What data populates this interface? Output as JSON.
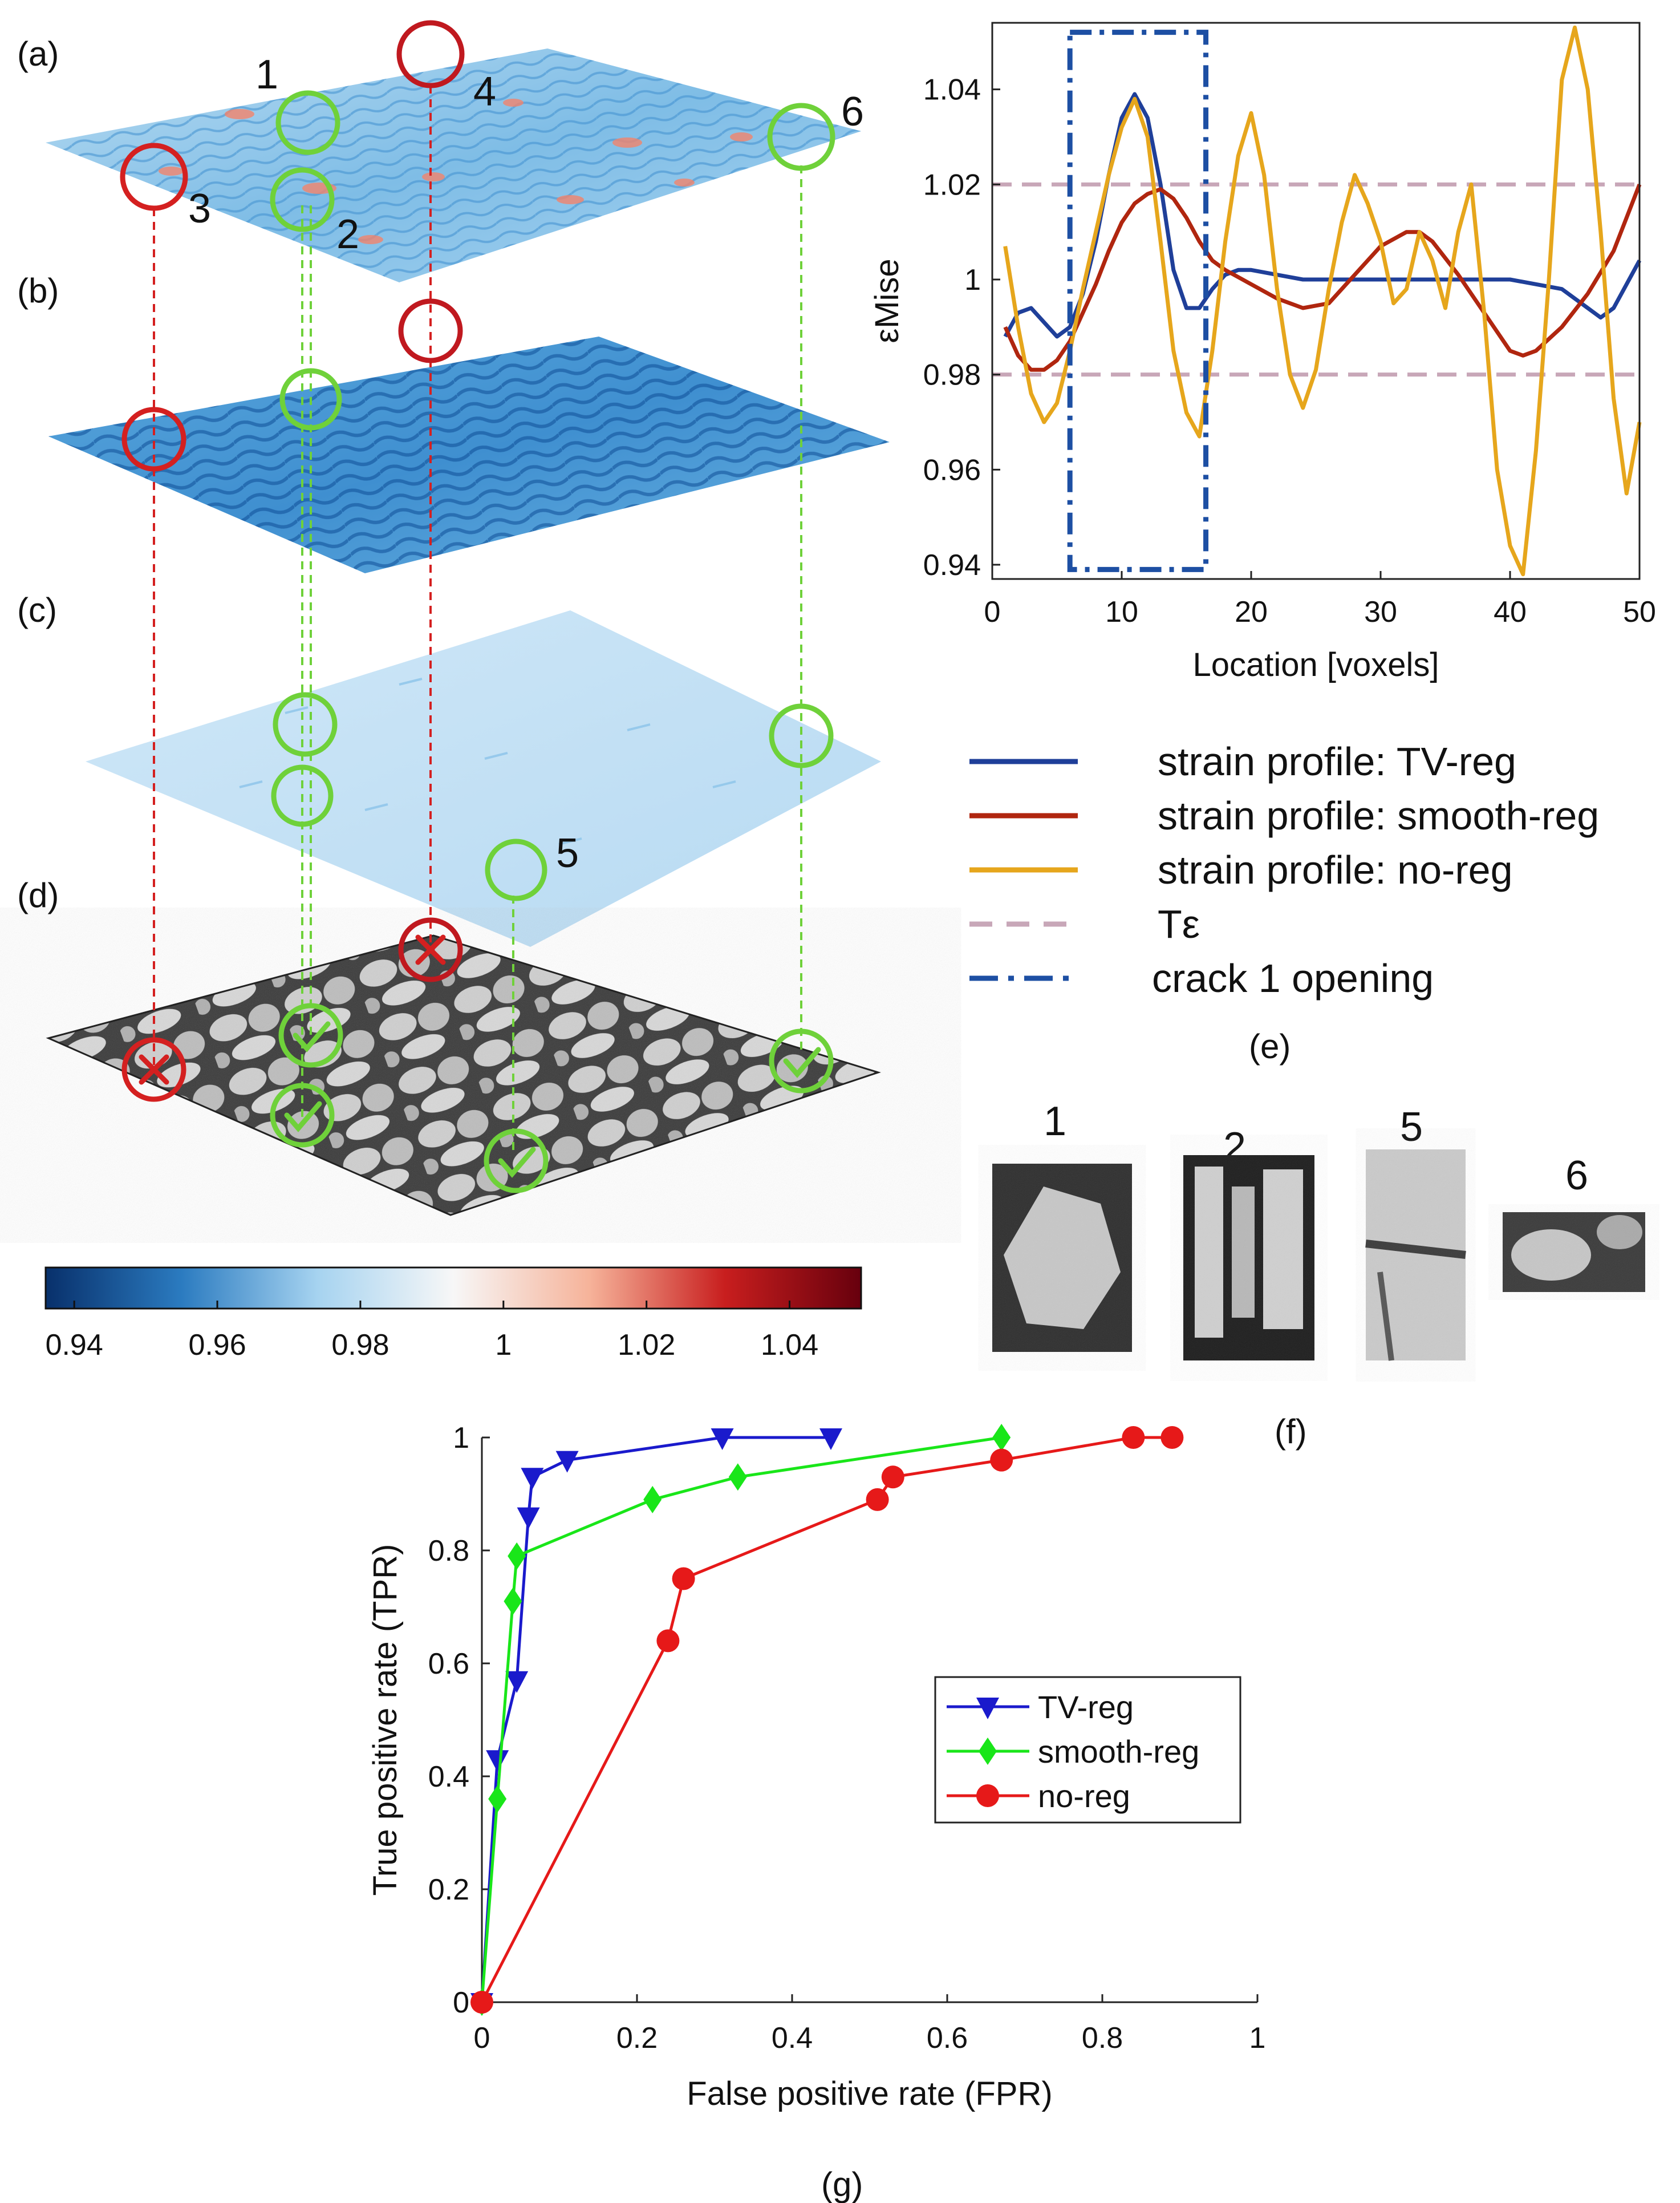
{
  "panel_labels": {
    "a": "(a)",
    "b": "(b)",
    "c": "(c)",
    "d": "(d)",
    "e": "(e)",
    "f": "(f)",
    "g": "(g)"
  },
  "markers": {
    "n1": "1",
    "n2": "2",
    "n3": "3",
    "n4": "4",
    "n5": "5",
    "n6": "6"
  },
  "colorbar": {
    "ticks": [
      "0.94",
      "0.96",
      "0.98",
      "1",
      "1.02",
      "1.04"
    ],
    "range": [
      0.936,
      1.05
    ],
    "stops": [
      "#08306b",
      "#2b7bc0",
      "#a6d3f0",
      "#f7f7f7",
      "#f6b39a",
      "#c81e1e",
      "#67000d"
    ]
  },
  "crops": {
    "labels": [
      "1",
      "2",
      "5",
      "6"
    ]
  },
  "colors": {
    "tv": "#1f3f99",
    "smooth": "#b0260f",
    "noreg": "#e6a61c",
    "threshold": "#c8a7b8",
    "crack": "#1d4fa3",
    "ring_ok": "#6fd13a",
    "ring_bad": "#d42020",
    "roc_tv": "#1a1acc",
    "roc_smooth": "#19e619",
    "roc_noreg": "#e61919"
  },
  "chart_data": [
    {
      "type": "line",
      "panel": "(e)",
      "xlabel": "Location [voxels]",
      "ylabel": "εMise",
      "xlim": [
        0,
        50
      ],
      "ylim": [
        0.937,
        1.054
      ],
      "xticks": [
        "0",
        "10",
        "20",
        "30",
        "40",
        "50"
      ],
      "yticks": [
        "0.94",
        "0.96",
        "0.98",
        "1",
        "1.02",
        "1.04"
      ],
      "thresholds": [
        0.98,
        1.02
      ],
      "crack_box": {
        "x": [
          6,
          16.5
        ],
        "y": [
          0.939,
          1.052
        ]
      },
      "series": [
        {
          "name": "strain profile: TV-reg",
          "key": "tv",
          "x": [
            1,
            2,
            3,
            4,
            5,
            6,
            7,
            8,
            9,
            10,
            11,
            12,
            13,
            14,
            15,
            16,
            17,
            18,
            19,
            20,
            22,
            24,
            26,
            28,
            30,
            32,
            34,
            36,
            38,
            40,
            42,
            44,
            46,
            47,
            48,
            50
          ],
          "y": [
            0.988,
            0.993,
            0.994,
            0.991,
            0.988,
            0.99,
            0.997,
            1.008,
            1.022,
            1.034,
            1.039,
            1.034,
            1.02,
            1.002,
            0.994,
            0.994,
            0.998,
            1.001,
            1.002,
            1.002,
            1.001,
            1.0,
            1.0,
            1.0,
            1.0,
            1.0,
            1.0,
            1.0,
            1.0,
            1.0,
            0.999,
            0.998,
            0.994,
            0.992,
            0.994,
            1.004
          ]
        },
        {
          "name": "strain profile: smooth-reg",
          "key": "smooth",
          "x": [
            1,
            2,
            3,
            4,
            5,
            6,
            7,
            8,
            9,
            10,
            11,
            12,
            13,
            14,
            15,
            16,
            17,
            18,
            20,
            22,
            24,
            26,
            28,
            30,
            32,
            33,
            34,
            36,
            38,
            40,
            41,
            42,
            44,
            46,
            48,
            50
          ],
          "y": [
            0.99,
            0.984,
            0.981,
            0.981,
            0.983,
            0.987,
            0.993,
            0.999,
            1.006,
            1.012,
            1.016,
            1.018,
            1.019,
            1.017,
            1.013,
            1.008,
            1.004,
            1.002,
            0.999,
            0.996,
            0.994,
            0.995,
            1.001,
            1.007,
            1.01,
            1.01,
            1.008,
            1.001,
            0.993,
            0.985,
            0.984,
            0.985,
            0.99,
            0.997,
            1.006,
            1.02
          ]
        },
        {
          "name": "strain profile: no-reg",
          "key": "noreg",
          "x": [
            1,
            2,
            3,
            4,
            5,
            6,
            7,
            8,
            9,
            10,
            11,
            12,
            13,
            14,
            15,
            16,
            17,
            18,
            19,
            20,
            21,
            22,
            23,
            24,
            25,
            26,
            27,
            28,
            29,
            30,
            31,
            32,
            33,
            34,
            35,
            36,
            37,
            38,
            39,
            40,
            41,
            42,
            43,
            44,
            45,
            46,
            47,
            48,
            49,
            50
          ],
          "y": [
            1.007,
            0.99,
            0.976,
            0.97,
            0.974,
            0.985,
            0.998,
            1.01,
            1.022,
            1.032,
            1.038,
            1.03,
            1.008,
            0.985,
            0.972,
            0.967,
            0.985,
            1.008,
            1.026,
            1.035,
            1.022,
            0.998,
            0.98,
            0.973,
            0.981,
            0.998,
            1.012,
            1.022,
            1.016,
            1.008,
            0.995,
            0.998,
            1.01,
            1.004,
            0.994,
            1.01,
            1.02,
            0.993,
            0.96,
            0.944,
            0.938,
            0.964,
            1.0,
            1.042,
            1.053,
            1.04,
            1.01,
            0.975,
            0.955,
            0.97
          ]
        }
      ],
      "legend": [
        {
          "label": "strain profile: TV-reg",
          "key": "tv",
          "style": "solid"
        },
        {
          "label": "strain profile: smooth-reg",
          "key": "smooth",
          "style": "solid"
        },
        {
          "label": "strain profile: no-reg",
          "key": "noreg",
          "style": "solid"
        },
        {
          "label": "Tε",
          "key": "threshold",
          "style": "dashed"
        },
        {
          "label": "crack 1 opening",
          "key": "crack",
          "style": "dashdot"
        }
      ]
    },
    {
      "type": "line",
      "panel": "(g)",
      "xlabel": "False positive rate (FPR)",
      "ylabel": "True positive rate (TPR)",
      "xlim": [
        0,
        1
      ],
      "ylim": [
        0,
        1
      ],
      "xticks": [
        "0",
        "0.2",
        "0.4",
        "0.6",
        "0.8",
        "1"
      ],
      "yticks": [
        "0",
        "0.2",
        "0.4",
        "0.6",
        "0.8",
        "1"
      ],
      "legend_position": "lower-right",
      "series": [
        {
          "name": "TV-reg",
          "key": "roc_tv",
          "marker": "triangle-down",
          "x": [
            0,
            0.02,
            0.045,
            0.06,
            0.065,
            0.11,
            0.31,
            0.45
          ],
          "y": [
            0,
            0.43,
            0.57,
            0.86,
            0.93,
            0.96,
            1.0,
            1.0
          ]
        },
        {
          "name": "smooth-reg",
          "key": "roc_smooth",
          "marker": "diamond",
          "x": [
            0,
            0.02,
            0.04,
            0.045,
            0.22,
            0.33,
            0.67
          ],
          "y": [
            0,
            0.36,
            0.71,
            0.79,
            0.89,
            0.93,
            1.0
          ]
        },
        {
          "name": "no-reg",
          "key": "roc_noreg",
          "marker": "circle",
          "x": [
            0,
            0.24,
            0.26,
            0.51,
            0.53,
            0.67,
            0.84,
            0.89
          ],
          "y": [
            0,
            0.64,
            0.75,
            0.89,
            0.93,
            0.96,
            1.0,
            1.0
          ]
        }
      ]
    }
  ]
}
